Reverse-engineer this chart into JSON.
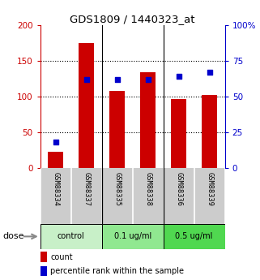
{
  "title": "GDS1809 / 1440323_at",
  "samples": [
    "GSM88334",
    "GSM88337",
    "GSM88335",
    "GSM88338",
    "GSM88336",
    "GSM88339"
  ],
  "counts": [
    22,
    175,
    108,
    134,
    97,
    102
  ],
  "percentile_ranks": [
    18,
    62,
    62,
    62,
    64,
    67
  ],
  "groups": [
    {
      "label": "control",
      "color": "#c8f0c8",
      "start": 0,
      "end": 2
    },
    {
      "label": "0.1 ug/ml",
      "color": "#90e890",
      "start": 2,
      "end": 4
    },
    {
      "label": "0.5 ug/ml",
      "color": "#50d850",
      "start": 4,
      "end": 6
    }
  ],
  "bar_color": "#cc0000",
  "dot_color": "#0000cc",
  "left_ylim": [
    0,
    200
  ],
  "right_ylim": [
    0,
    100
  ],
  "left_yticks": [
    0,
    50,
    100,
    150,
    200
  ],
  "right_yticks": [
    0,
    25,
    50,
    75,
    100
  ],
  "right_yticklabels": [
    "0",
    "25",
    "50",
    "75",
    "100%"
  ],
  "sample_label_bg": "#cccccc",
  "background_color": "#ffffff",
  "dose_label": "dose",
  "legend_count": "count",
  "legend_pct": "percentile rank within the sample"
}
